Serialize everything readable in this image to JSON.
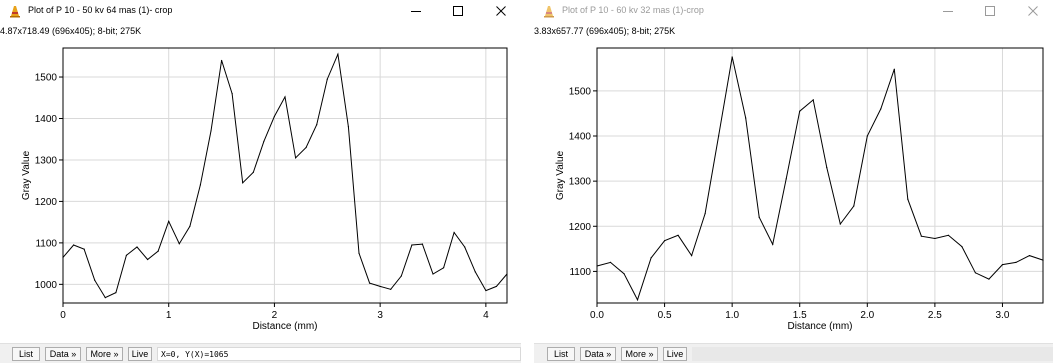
{
  "windows": [
    {
      "title": "Plot of P 10 - 50 kv 64 mas (1)- crop",
      "info": "4.87x718.49  (696x405); 8-bit; 275K",
      "buttons": {
        "list": "List",
        "data": "Data »",
        "more": "More »",
        "live": "Live"
      },
      "readout": "X=0, Y(X)=1065",
      "chart_data": {
        "type": "line",
        "title": "",
        "xlabel": "Distance (mm)",
        "ylabel": "Gray Value",
        "xlim": [
          0,
          4.2
        ],
        "ylim": [
          955,
          1570
        ],
        "x_ticks": [
          0,
          1,
          2,
          3,
          4
        ],
        "y_ticks": [
          1000,
          1100,
          1200,
          1300,
          1400,
          1500
        ],
        "x_tick_labels": [
          "0",
          "1",
          "2",
          "3",
          "4"
        ],
        "y_tick_labels": [
          "1000",
          "1100",
          "1200",
          "1300",
          "1400",
          "1500"
        ],
        "grid": true,
        "color": "#000000",
        "series": [
          {
            "x": [
              0,
              0.1,
              0.2,
              0.3,
              0.4,
              0.5,
              0.6,
              0.7,
              0.8,
              0.9,
              1.0,
              1.1,
              1.2,
              1.3,
              1.4,
              1.5,
              1.6,
              1.7,
              1.8,
              1.9,
              2.0,
              2.1,
              2.2,
              2.3,
              2.4,
              2.5,
              2.6,
              2.7,
              2.8,
              2.9,
              3.0,
              3.1,
              3.2,
              3.3,
              3.4,
              3.5,
              3.6,
              3.7,
              3.8,
              3.9,
              4.0,
              4.1,
              4.2
            ],
            "y": [
              1065,
              1095,
              1085,
              1010,
              968,
              980,
              1070,
              1090,
              1060,
              1080,
              1152,
              1098,
              1140,
              1240,
              1370,
              1540,
              1460,
              1245,
              1270,
              1345,
              1405,
              1452,
              1305,
              1330,
              1385,
              1495,
              1555,
              1380,
              1075,
              1003,
              995,
              988,
              1020,
              1095,
              1097,
              1025,
              1040,
              1125,
              1090,
              1030,
              985,
              995,
              1025
            ]
          }
        ]
      }
    },
    {
      "title": "Plot of P 10 - 60 kv 32 mas (1)-crop",
      "info": "3.83x657.77  (696x405); 8-bit; 275K",
      "buttons": {
        "list": "List",
        "data": "Data »",
        "more": "More »",
        "live": "Live"
      },
      "readout": "",
      "chart_data": {
        "type": "line",
        "title": "",
        "xlabel": "Distance (mm)",
        "ylabel": "Gray Value",
        "xlim": [
          0,
          3.3
        ],
        "ylim": [
          1030,
          1595
        ],
        "x_ticks": [
          0,
          0.5,
          1,
          1.5,
          2,
          2.5,
          3
        ],
        "y_ticks": [
          1100,
          1200,
          1300,
          1400,
          1500
        ],
        "x_tick_labels": [
          "0.0",
          "0.5",
          "1.0",
          "1.5",
          "2.0",
          "2.5",
          "3.0"
        ],
        "y_tick_labels": [
          "1100",
          "1200",
          "1300",
          "1400",
          "1500"
        ],
        "grid": true,
        "color": "#000000",
        "series": [
          {
            "x": [
              0,
              0.1,
              0.2,
              0.3,
              0.4,
              0.5,
              0.6,
              0.7,
              0.8,
              0.9,
              1.0,
              1.1,
              1.2,
              1.3,
              1.4,
              1.5,
              1.6,
              1.7,
              1.8,
              1.9,
              2.0,
              2.1,
              2.2,
              2.3,
              2.4,
              2.5,
              2.6,
              2.7,
              2.8,
              2.9,
              3.0,
              3.1,
              3.2,
              3.3
            ],
            "y": [
              1112,
              1120,
              1095,
              1037,
              1130,
              1168,
              1180,
              1135,
              1228,
              1400,
              1575,
              1440,
              1220,
              1160,
              1305,
              1455,
              1480,
              1330,
              1205,
              1245,
              1400,
              1460,
              1548,
              1260,
              1178,
              1173,
              1180,
              1155,
              1097,
              1083,
              1115,
              1120,
              1135,
              1125
            ]
          }
        ]
      }
    }
  ]
}
